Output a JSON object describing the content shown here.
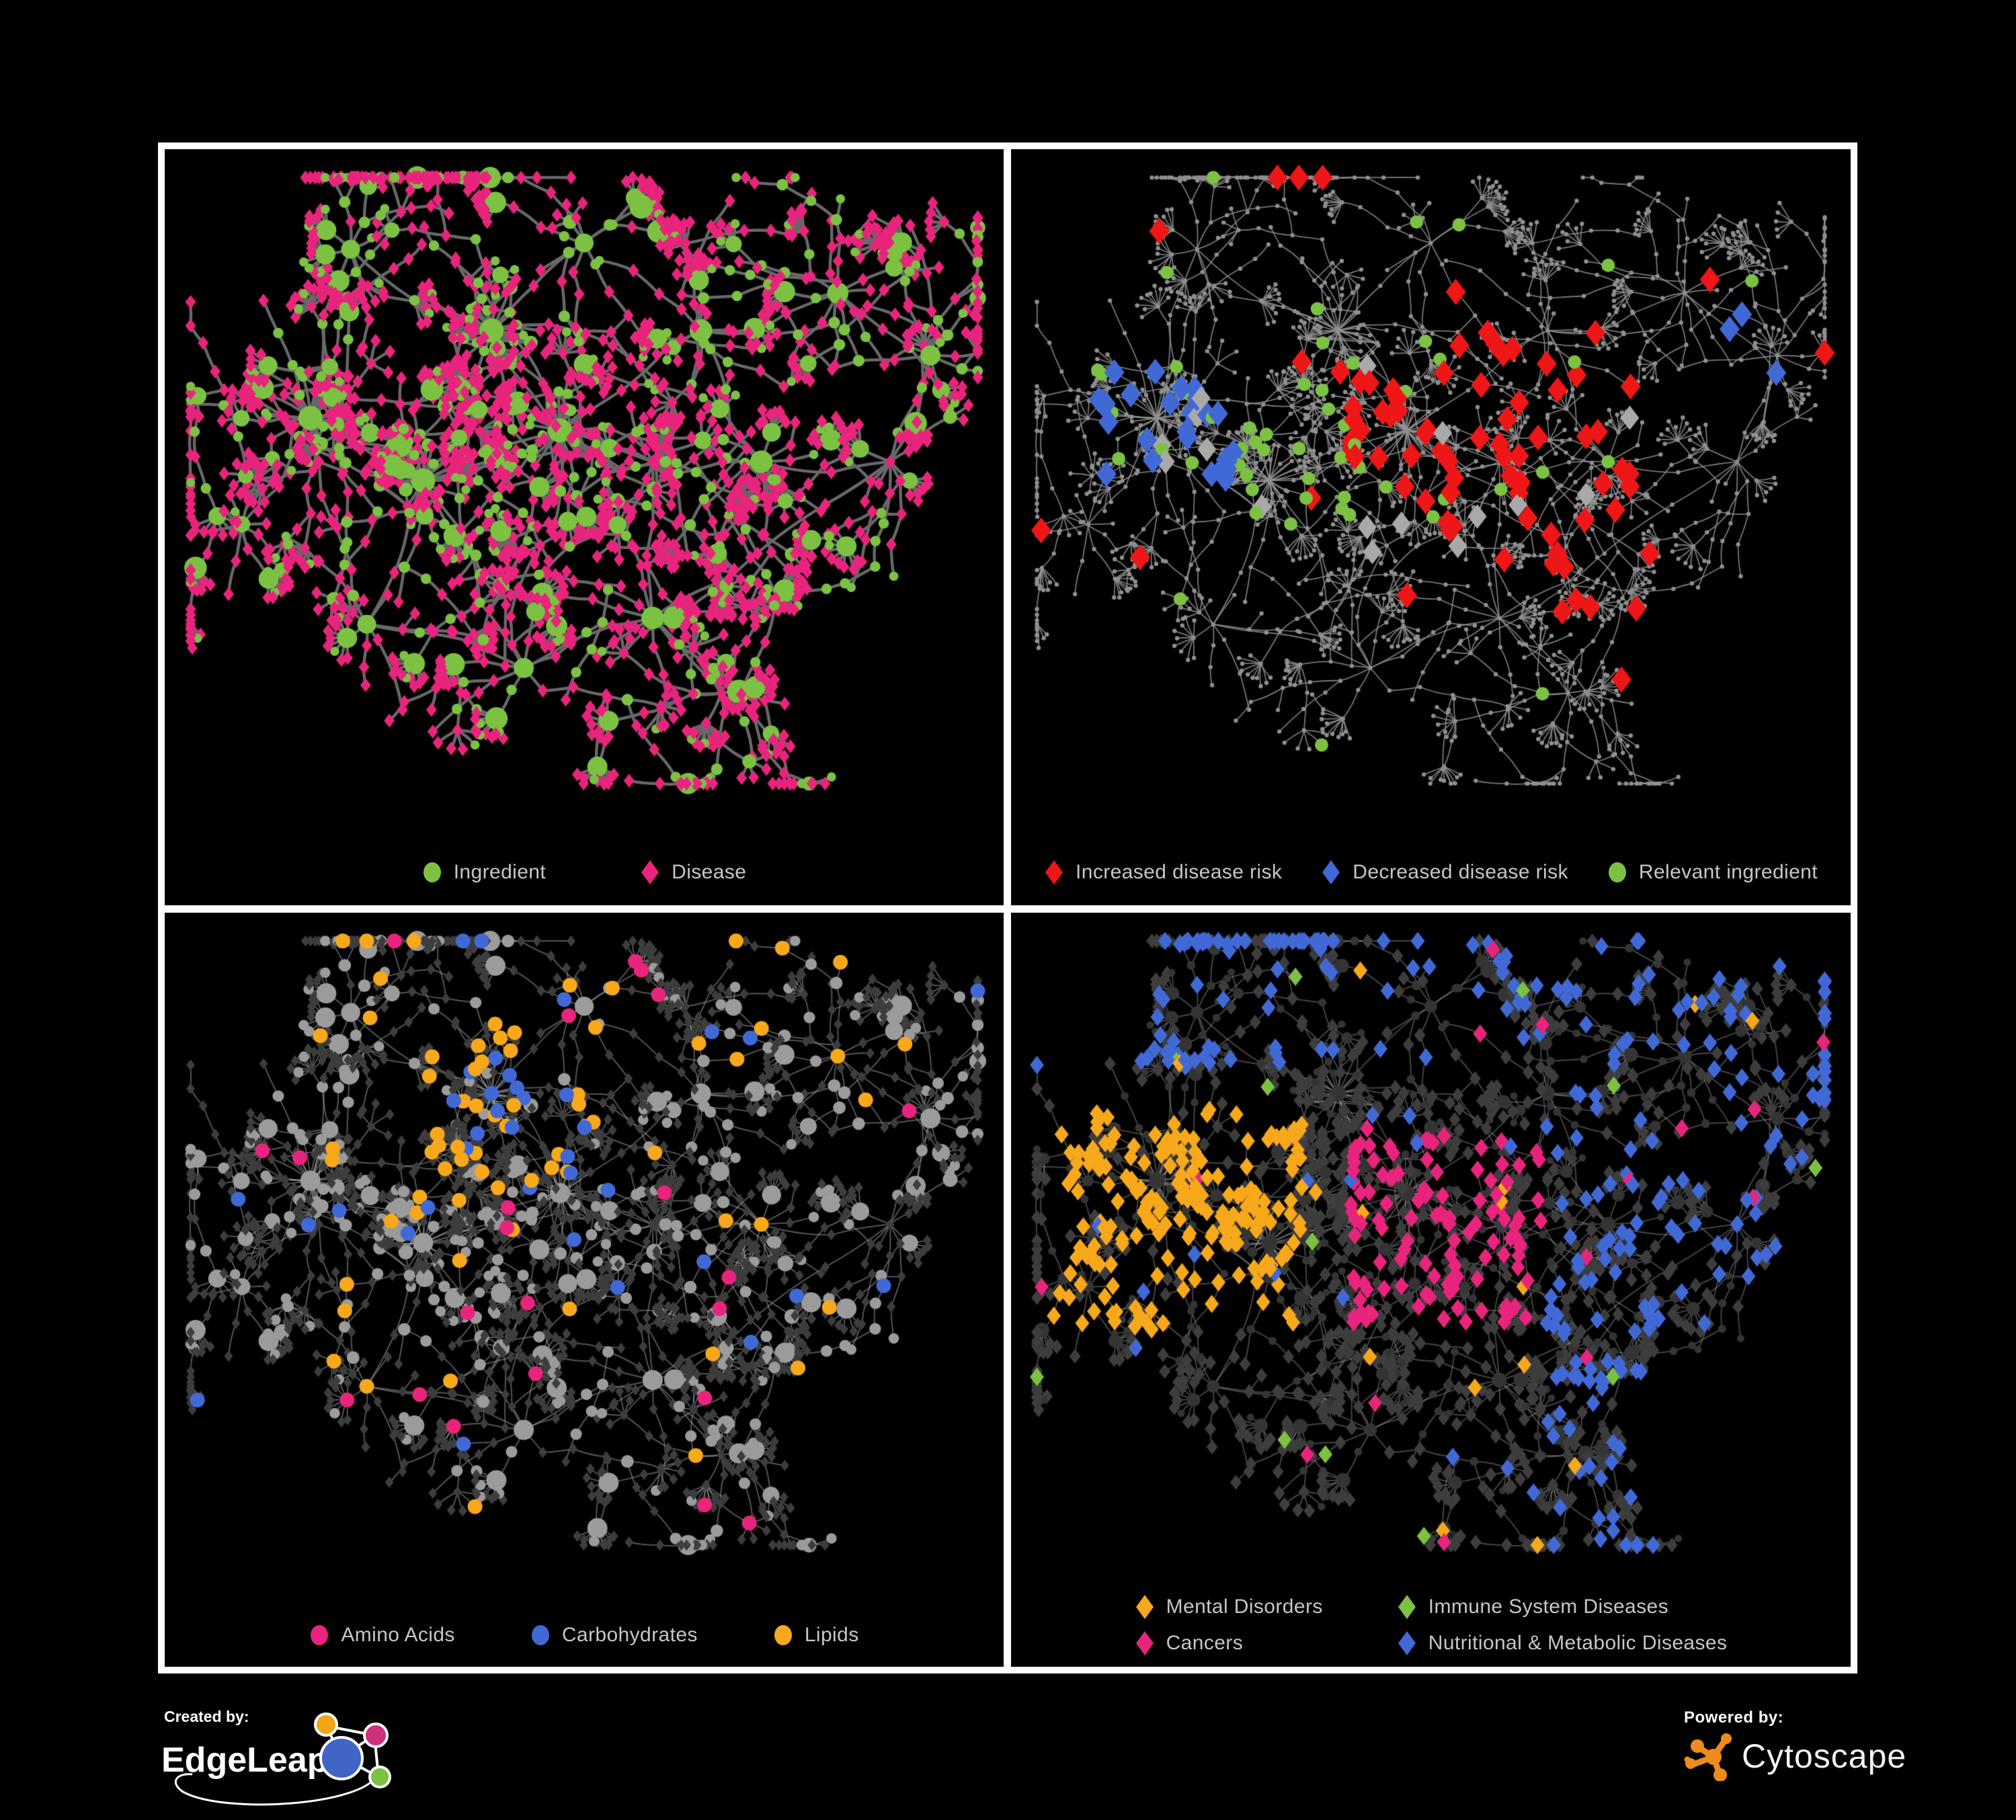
{
  "figure": {
    "background": "#000000",
    "panel_border": "#ffffff",
    "legend_text_color": "#c6c6c6"
  },
  "panels": [
    {
      "id": "ingredient-disease",
      "legend": [
        {
          "shape": "circle",
          "color": "#7cc142",
          "label": "Ingredient"
        },
        {
          "shape": "diamond",
          "color": "#e8247c",
          "label": "Disease"
        }
      ]
    },
    {
      "id": "disease-risk",
      "legend": [
        {
          "shape": "diamond",
          "color": "#ee1616",
          "label": "Increased disease risk"
        },
        {
          "shape": "diamond",
          "color": "#4169d6",
          "label": "Decreased disease risk"
        },
        {
          "shape": "circle",
          "color": "#7cc142",
          "label": "Relevant ingredient"
        }
      ]
    },
    {
      "id": "nutrient-classes",
      "legend": [
        {
          "shape": "circle",
          "color": "#e8247c",
          "label": "Amino Acids"
        },
        {
          "shape": "circle",
          "color": "#4169d6",
          "label": "Carbohydrates"
        },
        {
          "shape": "circle",
          "color": "#f7a81b",
          "label": "Lipids"
        }
      ]
    },
    {
      "id": "disease-classes",
      "legend": [
        {
          "shape": "diamond",
          "color": "#f7a81b",
          "label": "Mental Disorders"
        },
        {
          "shape": "diamond",
          "color": "#7cc142",
          "label": "Immune System Diseases"
        },
        {
          "shape": "diamond",
          "color": "#e8247c",
          "label": "Cancers"
        },
        {
          "shape": "diamond",
          "color": "#4169d6",
          "label": "Nutritional & Metabolic Diseases"
        }
      ]
    }
  ],
  "footer": {
    "created_by_label": "Created by:",
    "created_by_name": "EdgeLeap",
    "powered_by_label": "Powered by:",
    "powered_by_name": "Cytoscape"
  },
  "network_style": {
    "seed": 11,
    "colors": {
      "green": "#7cc142",
      "pink": "#e8247c",
      "red": "#ee1616",
      "blue": "#4169d6",
      "orange": "#f7a81b",
      "gray": "#9b9b9b",
      "tiny": "#8f8f8f",
      "grayDiamond": "#a9a9a9",
      "darkD": "#3d3d3d",
      "darkC": "#343434"
    },
    "edge_colors": [
      "#686868",
      "rgba(150,150,150,0.80)",
      "rgba(170,170,170,0.50)",
      "rgba(150,150,150,0.45)"
    ]
  }
}
